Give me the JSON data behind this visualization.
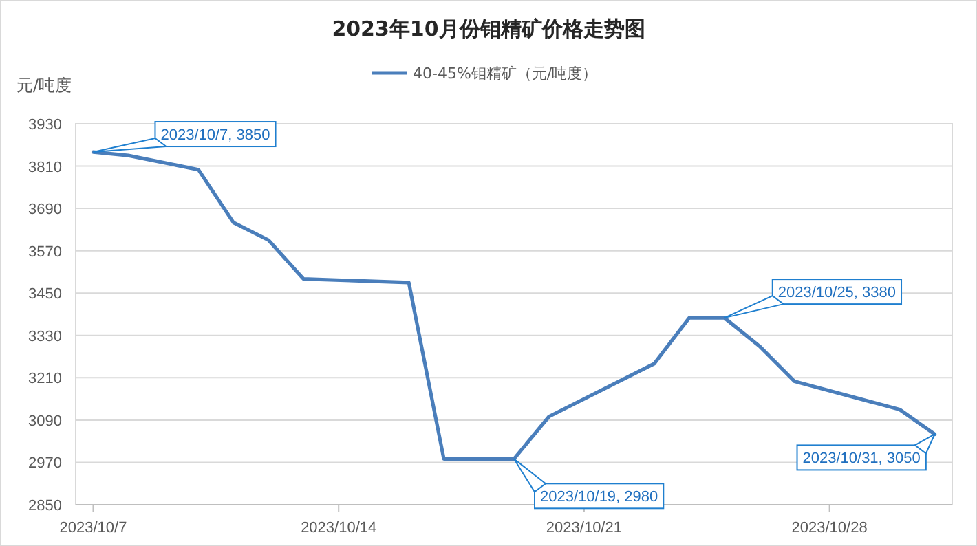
{
  "chart_data": {
    "type": "line",
    "title": "2023年10月份钼精矿价格走势图",
    "ylabel": "元/吨度",
    "x": [
      "2023-10-07",
      "2023-10-08",
      "2023-10-10",
      "2023-10-11",
      "2023-10-12",
      "2023-10-13",
      "2023-10-16",
      "2023-10-17",
      "2023-10-18",
      "2023-10-19",
      "2023-10-20",
      "2023-10-23",
      "2023-10-24",
      "2023-10-25",
      "2023-10-26",
      "2023-10-27",
      "2023-10-30",
      "2023-10-31"
    ],
    "series": [
      {
        "name": "40-45%钼精矿（元/吨度）",
        "color": "#4a7ebb",
        "values": [
          3850,
          3840,
          3800,
          3650,
          3600,
          3490,
          3480,
          2980,
          2980,
          2980,
          3100,
          3250,
          3380,
          3380,
          3300,
          3200,
          3120,
          3050
        ]
      }
    ],
    "xlim": [
      "2023-10-06T12:00",
      "2023-10-31T12:00"
    ],
    "xticks": [
      {
        "value": "2023-10-07",
        "label": "2023/10/7"
      },
      {
        "value": "2023-10-14",
        "label": "2023/10/14"
      },
      {
        "value": "2023-10-21",
        "label": "2023/10/21"
      },
      {
        "value": "2023-10-28",
        "label": "2023/10/28"
      }
    ],
    "ylim": [
      2850,
      3930
    ],
    "yticks": [
      2850,
      2970,
      3090,
      3210,
      3330,
      3450,
      3570,
      3690,
      3810,
      3930
    ],
    "grid": "y",
    "legend": "top",
    "marker": "none",
    "line_style": "solid",
    "annotations": [
      {
        "text": "2023/10/7, 3850",
        "x": "2023-10-07",
        "y": 3850
      },
      {
        "text": "2023/10/19, 2980",
        "x": "2023-10-19",
        "y": 2980
      },
      {
        "text": "2023/10/25, 3380",
        "x": "2023-10-25",
        "y": 3380
      },
      {
        "text": "2023/10/31, 3050",
        "x": "2023-10-31",
        "y": 3050
      }
    ]
  }
}
